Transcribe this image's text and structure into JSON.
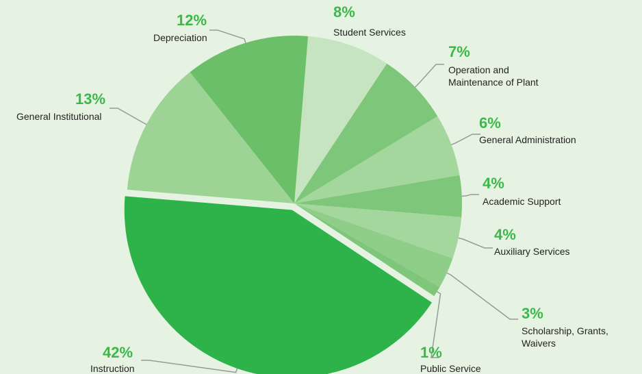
{
  "chart_data": {
    "type": "pie",
    "categories": [
      "Student Services",
      "Operation and Maintenance of Plant",
      "General Administration",
      "Academic Support",
      "Auxiliary Services",
      "Scholarship, Grants, Waivers",
      "Public Service",
      "Instruction",
      "General Institutional",
      "Depreciation"
    ],
    "values": [
      8,
      7,
      6,
      4,
      4,
      3,
      1,
      42,
      13,
      12
    ],
    "value_labels": [
      "8%",
      "7%",
      "6%",
      "4%",
      "4%",
      "3%",
      "1%",
      "42%",
      "13%",
      "12%"
    ],
    "colors": [
      "#c6e4c0",
      "#7ec77a",
      "#a4d79d",
      "#7ec77a",
      "#a4d79d",
      "#8fce88",
      "#7ec77a",
      "#2eb34a",
      "#9dd394",
      "#6bbf69"
    ],
    "exploded": [
      false,
      false,
      false,
      false,
      false,
      false,
      false,
      true,
      false,
      false
    ]
  }
}
